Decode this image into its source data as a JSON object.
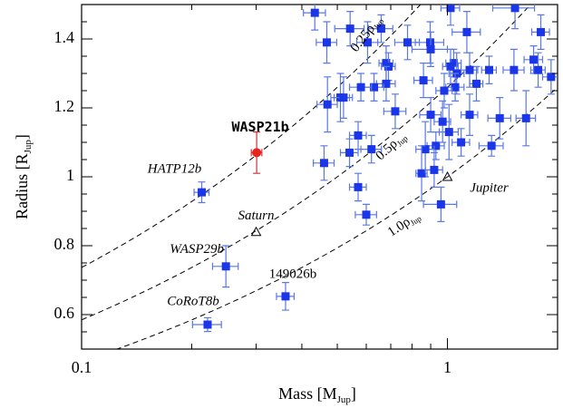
{
  "chart_data": {
    "type": "scatter",
    "xlabel": [
      "Mass [M",
      "Jup",
      "]"
    ],
    "ylabel": [
      "Radius [R",
      "Jup",
      "]"
    ],
    "xscale": "log",
    "xlim": [
      0.1,
      2
    ],
    "xticks": [
      0.1,
      1
    ],
    "xminor": [
      0.2,
      0.3,
      0.4,
      0.5,
      0.6,
      0.7,
      0.8,
      0.9,
      2
    ],
    "ylim": [
      0.5,
      1.5
    ],
    "yticks": [
      0.6,
      0.8,
      1,
      1.2,
      1.4
    ],
    "yminor": [
      0.5,
      0.55,
      0.65,
      0.7,
      0.75,
      0.85,
      0.9,
      0.95,
      1.05,
      1.1,
      1.15,
      1.25,
      1.3,
      1.35,
      1.45,
      1.5
    ],
    "points": {
      "color": "#1a36e8",
      "errcolor": "#5a78e6",
      "x": [
        0.434,
        0.468,
        0.542,
        0.605,
        0.659,
        0.778,
        0.897,
        1.02,
        1.04,
        1.13,
        1.53,
        1.8,
        1.72,
        1.77,
        1.92,
        1.52,
        1.3,
        1.2,
        1.15,
        1.02,
        1.06,
        1.05,
        0.98,
        0.9,
        0.86,
        0.68,
        0.69,
        0.68,
        0.63,
        0.58,
        0.51,
        0.52,
        0.47,
        0.72,
        0.9,
        0.93,
        1.01,
        1.09,
        1.15,
        1.39,
        1.64,
        1.32,
        0.97,
        0.87,
        0.85,
        0.92,
        0.57,
        0.62,
        0.54,
        0.46,
        0.57,
        0.6,
        0.96
      ],
      "y": [
        1.476,
        1.39,
        1.43,
        1.39,
        1.43,
        1.39,
        1.39,
        1.49,
        1.33,
        1.42,
        1.49,
        1.42,
        1.34,
        1.31,
        1.29,
        1.31,
        1.31,
        1.27,
        1.31,
        1.32,
        1.3,
        1.26,
        1.25,
        1.37,
        1.28,
        1.33,
        1.32,
        1.27,
        1.26,
        1.26,
        1.23,
        1.23,
        1.21,
        1.19,
        1.18,
        1.09,
        1.13,
        1.1,
        1.18,
        1.17,
        1.17,
        1.09,
        1.16,
        1.08,
        1.01,
        1.02,
        1.12,
        1.08,
        1.07,
        1.04,
        0.97,
        0.89,
        0.92
      ],
      "xerr": [
        0.03,
        0.03,
        0.05,
        0.04,
        0.05,
        0.06,
        0.08,
        0.06,
        0.05,
        0.1,
        0.2,
        0.1,
        0.1,
        0.08,
        0.1,
        0.1,
        0.06,
        0.05,
        0.06,
        0.05,
        0.05,
        0.06,
        0.05,
        0.1,
        0.05,
        0.03,
        0.03,
        0.04,
        0.04,
        0.04,
        0.03,
        0.03,
        0.03,
        0.05,
        0.06,
        0.05,
        0.06,
        0.06,
        0.06,
        0.1,
        0.1,
        0.1,
        0.05,
        0.05,
        0.03,
        0.05,
        0.03,
        0.04,
        0.03,
        0.03,
        0.03,
        0.04,
        0.1
      ],
      "yerr": [
        0.05,
        0.06,
        0.05,
        0.06,
        0.04,
        0.05,
        0.06,
        0.05,
        0.04,
        0.06,
        0.06,
        0.05,
        0.04,
        0.05,
        0.05,
        0.06,
        0.04,
        0.05,
        0.05,
        0.05,
        0.06,
        0.04,
        0.05,
        0.05,
        0.05,
        0.05,
        0.04,
        0.05,
        0.04,
        0.04,
        0.07,
        0.06,
        0.08,
        0.05,
        0.05,
        0.04,
        0.08,
        0.04,
        0.06,
        0.06,
        0.08,
        0.03,
        0.06,
        0.08,
        0.08,
        0.05,
        0.04,
        0.04,
        0.04,
        0.05,
        0.04,
        0.03,
        0.05
      ]
    },
    "labeled": [
      {
        "label": "HATP12b",
        "x": 0.213,
        "y": 0.955,
        "xerr": 0.01,
        "yerr": 0.03
      },
      {
        "label": "WASP29b",
        "x": 0.248,
        "y": 0.74,
        "xerr": 0.02,
        "yerr": 0.06
      },
      {
        "label": "149026b",
        "x": 0.361,
        "y": 0.653,
        "xerr": 0.02,
        "yerr": 0.04
      },
      {
        "label": "CoRoT8b",
        "x": 0.221,
        "y": 0.571,
        "xerr": 0.02,
        "yerr": 0.02
      }
    ],
    "highlight": {
      "label": "WASP21b",
      "x": 0.301,
      "y": 1.07,
      "xerr": 0.01,
      "yerr": 0.06,
      "color": "#e8241c",
      "errcolor": "#d0303a"
    },
    "reference": [
      {
        "label": "Saturn",
        "x": 0.3,
        "y": 0.84
      },
      {
        "label": "Jupiter",
        "x": 1,
        "y": 1
      }
    ],
    "curves": [
      {
        "density": 0.25,
        "label": [
          "0.25ρ",
          "Jup"
        ]
      },
      {
        "density": 0.5,
        "label": [
          "0.5ρ",
          "Jup"
        ]
      },
      {
        "density": 1.0,
        "label": [
          "1.0ρ",
          "Jup"
        ]
      }
    ]
  }
}
